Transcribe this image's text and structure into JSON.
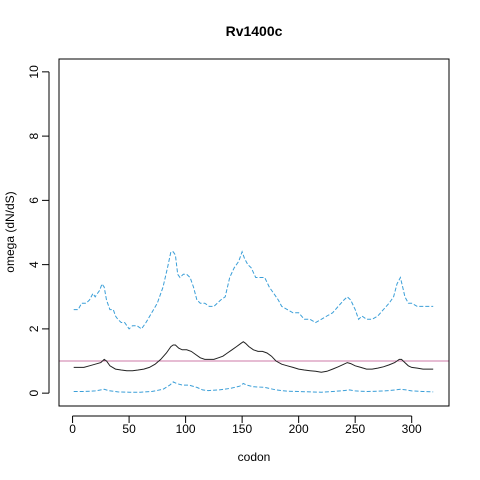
{
  "chart_data": {
    "type": "line",
    "title": "Rv1400c",
    "xlabel": "codon",
    "ylabel": "omega (dN/dS)",
    "xlim": [
      -12,
      333
    ],
    "ylim": [
      -0.4,
      10.4
    ],
    "x_ticks": [
      0,
      50,
      100,
      150,
      200,
      250,
      300
    ],
    "y_ticks": [
      0,
      2,
      4,
      6,
      8,
      10
    ],
    "reference_line": {
      "y": 1,
      "color": "#cc79a7"
    },
    "grid": false,
    "series": [
      {
        "role": "upper",
        "color": "#3b9fd8",
        "style": "dashed",
        "points": [
          [
            1,
            2.6
          ],
          [
            5,
            2.6
          ],
          [
            8,
            2.8
          ],
          [
            12,
            2.8
          ],
          [
            15,
            2.9
          ],
          [
            18,
            3.1
          ],
          [
            20,
            3.0
          ],
          [
            22,
            3.1
          ],
          [
            24,
            3.2
          ],
          [
            26,
            3.4
          ],
          [
            28,
            3.3
          ],
          [
            30,
            2.9
          ],
          [
            33,
            2.6
          ],
          [
            36,
            2.6
          ],
          [
            38,
            2.4
          ],
          [
            40,
            2.3
          ],
          [
            43,
            2.2
          ],
          [
            46,
            2.2
          ],
          [
            50,
            2.0
          ],
          [
            53,
            2.1
          ],
          [
            57,
            2.1
          ],
          [
            61,
            2.0
          ],
          [
            65,
            2.2
          ],
          [
            70,
            2.5
          ],
          [
            75,
            2.8
          ],
          [
            80,
            3.3
          ],
          [
            84,
            3.9
          ],
          [
            87,
            4.4
          ],
          [
            89,
            4.4
          ],
          [
            91,
            4.3
          ],
          [
            93,
            3.7
          ],
          [
            95,
            3.6
          ],
          [
            98,
            3.7
          ],
          [
            101,
            3.7
          ],
          [
            104,
            3.6
          ],
          [
            107,
            3.3
          ],
          [
            110,
            2.9
          ],
          [
            113,
            2.8
          ],
          [
            117,
            2.8
          ],
          [
            121,
            2.7
          ],
          [
            125,
            2.7
          ],
          [
            128,
            2.8
          ],
          [
            131,
            2.9
          ],
          [
            135,
            3.0
          ],
          [
            139,
            3.6
          ],
          [
            143,
            3.9
          ],
          [
            147,
            4.1
          ],
          [
            150,
            4.4
          ],
          [
            152,
            4.2
          ],
          [
            155,
            4.0
          ],
          [
            158,
            3.9
          ],
          [
            162,
            3.6
          ],
          [
            166,
            3.6
          ],
          [
            170,
            3.6
          ],
          [
            174,
            3.3
          ],
          [
            178,
            3.1
          ],
          [
            182,
            2.9
          ],
          [
            185,
            2.7
          ],
          [
            190,
            2.6
          ],
          [
            195,
            2.5
          ],
          [
            200,
            2.5
          ],
          [
            205,
            2.3
          ],
          [
            210,
            2.3
          ],
          [
            215,
            2.2
          ],
          [
            220,
            2.3
          ],
          [
            225,
            2.4
          ],
          [
            230,
            2.5
          ],
          [
            235,
            2.7
          ],
          [
            240,
            2.9
          ],
          [
            243,
            3.0
          ],
          [
            246,
            2.9
          ],
          [
            250,
            2.6
          ],
          [
            253,
            2.3
          ],
          [
            256,
            2.4
          ],
          [
            260,
            2.3
          ],
          [
            265,
            2.3
          ],
          [
            270,
            2.4
          ],
          [
            275,
            2.6
          ],
          [
            280,
            2.8
          ],
          [
            284,
            3.0
          ],
          [
            287,
            3.4
          ],
          [
            290,
            3.6
          ],
          [
            292,
            3.3
          ],
          [
            294,
            3.0
          ],
          [
            297,
            2.8
          ],
          [
            300,
            2.8
          ],
          [
            305,
            2.7
          ],
          [
            310,
            2.7
          ],
          [
            315,
            2.7
          ],
          [
            319,
            2.7
          ]
        ]
      },
      {
        "role": "estimate",
        "color": "#222222",
        "style": "solid",
        "points": [
          [
            1,
            0.8
          ],
          [
            5,
            0.8
          ],
          [
            10,
            0.8
          ],
          [
            15,
            0.85
          ],
          [
            20,
            0.9
          ],
          [
            25,
            0.95
          ],
          [
            28,
            1.05
          ],
          [
            30,
            1.0
          ],
          [
            33,
            0.85
          ],
          [
            38,
            0.75
          ],
          [
            43,
            0.72
          ],
          [
            48,
            0.7
          ],
          [
            53,
            0.7
          ],
          [
            58,
            0.72
          ],
          [
            63,
            0.75
          ],
          [
            68,
            0.8
          ],
          [
            73,
            0.9
          ],
          [
            78,
            1.05
          ],
          [
            83,
            1.25
          ],
          [
            87,
            1.45
          ],
          [
            89,
            1.5
          ],
          [
            91,
            1.5
          ],
          [
            94,
            1.4
          ],
          [
            97,
            1.35
          ],
          [
            101,
            1.35
          ],
          [
            105,
            1.3
          ],
          [
            109,
            1.2
          ],
          [
            113,
            1.1
          ],
          [
            117,
            1.05
          ],
          [
            121,
            1.05
          ],
          [
            125,
            1.05
          ],
          [
            129,
            1.1
          ],
          [
            133,
            1.15
          ],
          [
            137,
            1.25
          ],
          [
            141,
            1.35
          ],
          [
            145,
            1.45
          ],
          [
            149,
            1.55
          ],
          [
            151,
            1.6
          ],
          [
            153,
            1.55
          ],
          [
            156,
            1.45
          ],
          [
            160,
            1.35
          ],
          [
            164,
            1.3
          ],
          [
            168,
            1.3
          ],
          [
            172,
            1.25
          ],
          [
            176,
            1.15
          ],
          [
            180,
            1.0
          ],
          [
            185,
            0.9
          ],
          [
            190,
            0.85
          ],
          [
            195,
            0.8
          ],
          [
            200,
            0.75
          ],
          [
            205,
            0.72
          ],
          [
            210,
            0.7
          ],
          [
            215,
            0.68
          ],
          [
            220,
            0.65
          ],
          [
            225,
            0.68
          ],
          [
            230,
            0.75
          ],
          [
            235,
            0.82
          ],
          [
            240,
            0.9
          ],
          [
            243,
            0.95
          ],
          [
            246,
            0.92
          ],
          [
            250,
            0.85
          ],
          [
            255,
            0.8
          ],
          [
            260,
            0.75
          ],
          [
            265,
            0.75
          ],
          [
            270,
            0.78
          ],
          [
            275,
            0.82
          ],
          [
            280,
            0.88
          ],
          [
            285,
            0.95
          ],
          [
            289,
            1.05
          ],
          [
            291,
            1.05
          ],
          [
            294,
            0.95
          ],
          [
            297,
            0.85
          ],
          [
            300,
            0.8
          ],
          [
            305,
            0.78
          ],
          [
            310,
            0.75
          ],
          [
            315,
            0.75
          ],
          [
            319,
            0.75
          ]
        ]
      },
      {
        "role": "lower",
        "color": "#3b9fd8",
        "style": "dashed",
        "points": [
          [
            1,
            0.05
          ],
          [
            10,
            0.05
          ],
          [
            20,
            0.07
          ],
          [
            28,
            0.12
          ],
          [
            32,
            0.08
          ],
          [
            40,
            0.04
          ],
          [
            50,
            0.03
          ],
          [
            60,
            0.03
          ],
          [
            70,
            0.05
          ],
          [
            80,
            0.12
          ],
          [
            86,
            0.25
          ],
          [
            89,
            0.35
          ],
          [
            92,
            0.3
          ],
          [
            97,
            0.25
          ],
          [
            103,
            0.25
          ],
          [
            110,
            0.18
          ],
          [
            115,
            0.1
          ],
          [
            120,
            0.08
          ],
          [
            130,
            0.1
          ],
          [
            140,
            0.15
          ],
          [
            148,
            0.22
          ],
          [
            151,
            0.3
          ],
          [
            154,
            0.25
          ],
          [
            160,
            0.2
          ],
          [
            170,
            0.18
          ],
          [
            180,
            0.1
          ],
          [
            190,
            0.06
          ],
          [
            200,
            0.05
          ],
          [
            210,
            0.04
          ],
          [
            220,
            0.03
          ],
          [
            230,
            0.05
          ],
          [
            240,
            0.08
          ],
          [
            245,
            0.1
          ],
          [
            250,
            0.07
          ],
          [
            260,
            0.05
          ],
          [
            270,
            0.06
          ],
          [
            280,
            0.08
          ],
          [
            290,
            0.12
          ],
          [
            295,
            0.1
          ],
          [
            300,
            0.07
          ],
          [
            310,
            0.05
          ],
          [
            319,
            0.04
          ]
        ]
      }
    ]
  }
}
